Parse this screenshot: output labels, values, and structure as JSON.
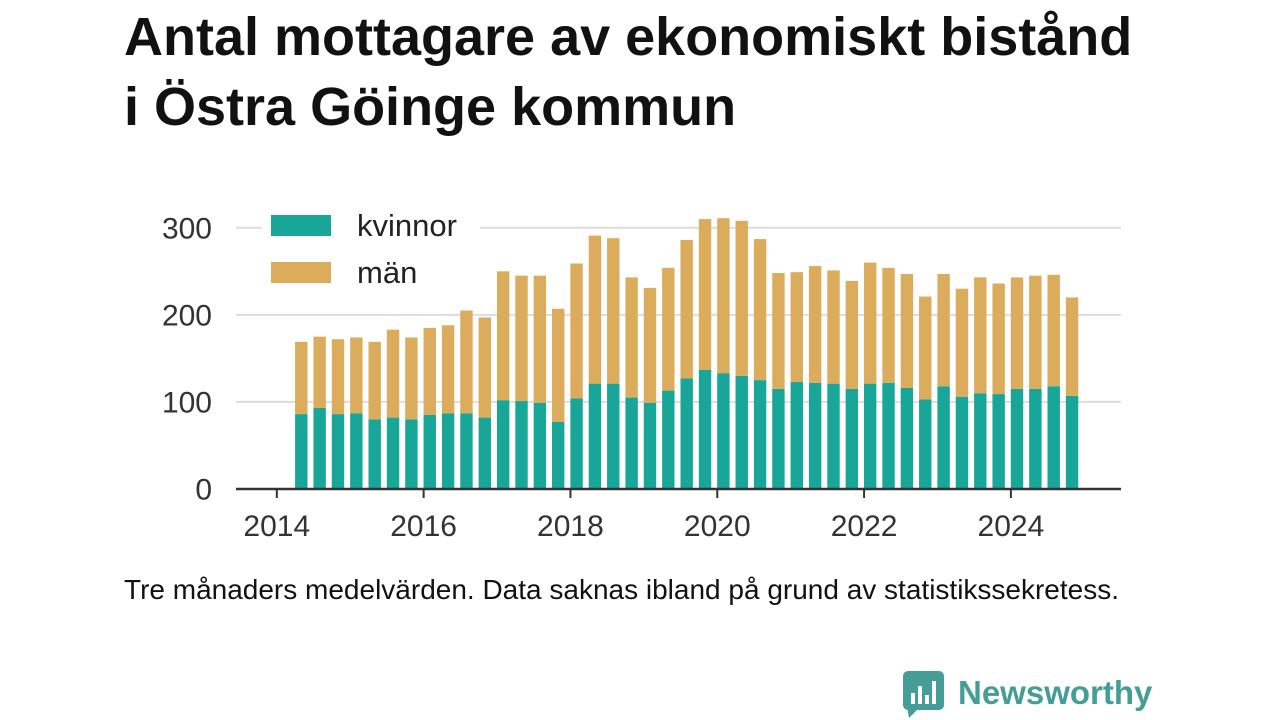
{
  "colors": {
    "text": "#111111",
    "axis": "#333333",
    "grid": "#dddddd"
  },
  "logo": {
    "text": "Newsworthy",
    "icon": "bar-chart-speech-bubble-icon",
    "color": "#449d96"
  },
  "chart_data": {
    "type": "bar",
    "stacked": true,
    "title": "Antal mottagare av ekonomiskt bistånd i Östra Göinge kommun",
    "caption": "Tre månaders medelvärden. Data saknas ibland på grund av statistikssekretess.",
    "x": [
      "2014-05",
      "2014-08",
      "2014-11",
      "2015-02",
      "2015-05",
      "2015-08",
      "2015-11",
      "2016-02",
      "2016-05",
      "2016-08",
      "2016-11",
      "2017-02",
      "2017-05",
      "2017-08",
      "2017-11",
      "2018-02",
      "2018-05",
      "2018-08",
      "2018-11",
      "2019-02",
      "2019-05",
      "2019-08",
      "2019-11",
      "2020-02",
      "2020-05",
      "2020-08",
      "2020-11",
      "2021-02",
      "2021-05",
      "2021-08",
      "2021-11",
      "2022-02",
      "2022-05",
      "2022-08",
      "2022-11",
      "2023-02",
      "2023-05",
      "2023-08",
      "2023-11",
      "2024-02",
      "2024-05",
      "2024-08",
      "2024-11"
    ],
    "series": [
      {
        "name": "kvinnor",
        "color": "#17a697",
        "values": [
          86,
          93,
          86,
          87,
          80,
          82,
          80,
          85,
          87,
          87,
          82,
          102,
          101,
          99,
          77,
          104,
          121,
          121,
          105,
          99,
          113,
          127,
          137,
          133,
          130,
          125,
          115,
          123,
          122,
          121,
          115,
          121,
          122,
          116,
          103,
          118,
          106,
          110,
          109,
          115,
          115,
          118,
          107
        ]
      },
      {
        "name": "män",
        "color": "#dbac5c",
        "values": [
          83,
          82,
          86,
          87,
          89,
          101,
          94,
          100,
          101,
          118,
          115,
          148,
          144,
          146,
          130,
          155,
          170,
          167,
          138,
          132,
          141,
          159,
          173,
          178,
          178,
          162,
          133,
          126,
          134,
          130,
          124,
          139,
          132,
          131,
          118,
          129,
          124,
          133,
          127,
          128,
          130,
          128,
          113
        ]
      }
    ],
    "xticks": [
      2014,
      2016,
      2018,
      2020,
      2022,
      2024
    ],
    "yticks": [
      0,
      100,
      200,
      300
    ],
    "xlim": [
      "2013-06",
      "2025-07"
    ],
    "ylim": [
      0,
      325
    ],
    "grid": "horizontal",
    "legend": {
      "position": "top-left"
    }
  }
}
